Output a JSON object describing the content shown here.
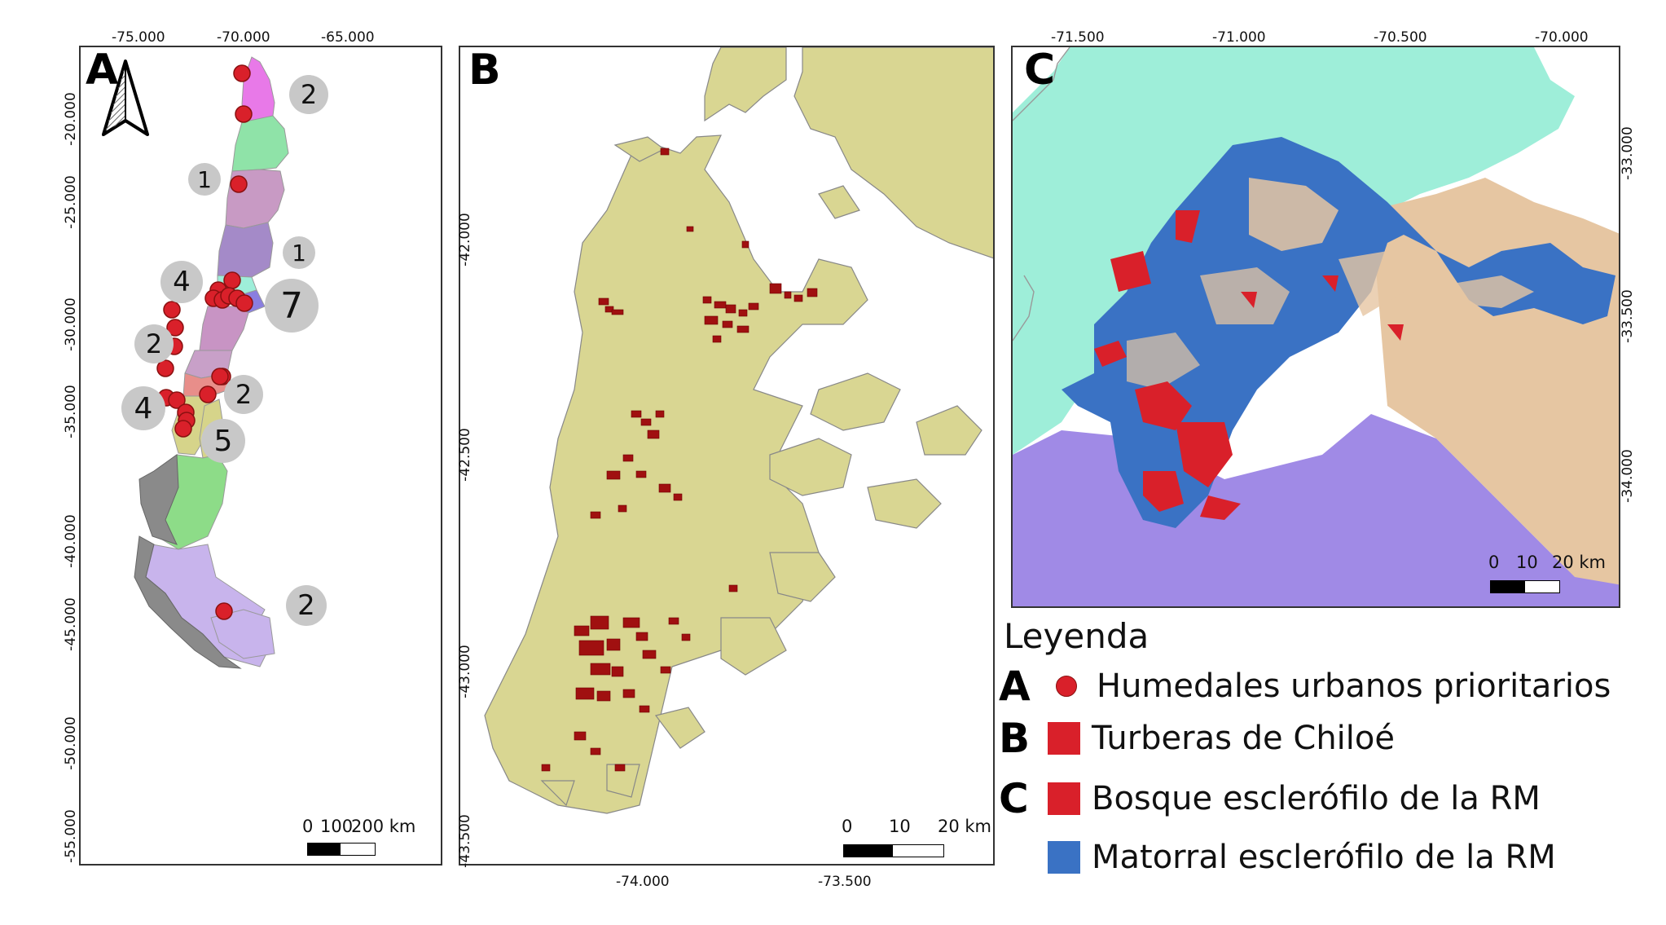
{
  "panel_a": {
    "letter": "A",
    "lon_ticks": [
      "-75.000",
      "-70.000",
      "-65.000"
    ],
    "lat_ticks": [
      "-20.000",
      "-25.000",
      "-30.000",
      "-35.000",
      "-40.000",
      "-45.000",
      "-50.000",
      "-55.000"
    ],
    "counts": [
      "2",
      "1",
      "1",
      "4",
      "7",
      "2",
      "2",
      "4",
      "5",
      "2"
    ],
    "scale": {
      "zero": "0",
      "mid": "100",
      "end": "200 km"
    }
  },
  "panel_b": {
    "letter": "B",
    "lon_ticks": [
      "-74.000",
      "-73.500"
    ],
    "lat_ticks": [
      "-42.000",
      "-42.500",
      "-43.000",
      "-43.500"
    ],
    "scale": {
      "zero": "0",
      "mid": "10",
      "end": "20 km"
    }
  },
  "panel_c": {
    "letter": "C",
    "lon_ticks": [
      "-71.500",
      "-71.000",
      "-70.500",
      "-70.000"
    ],
    "lat_ticks": [
      "-33.000",
      "-33.500",
      "-34.000"
    ],
    "scale": {
      "zero": "0",
      "mid": "10",
      "end": "20 km"
    }
  },
  "legend": {
    "title": "Leyenda",
    "items": [
      {
        "key": "A",
        "label": "Humedales urbanos prioritarios",
        "color": "#d9202a",
        "shape": "circle"
      },
      {
        "key": "B",
        "label": "Turberas de Chiloé",
        "color": "#d9202a",
        "shape": "square"
      },
      {
        "key": "C",
        "label": "Bosque esclerófilo de la RM",
        "color": "#d9202a",
        "shape": "square"
      },
      {
        "key": "",
        "label": "Matorral esclerófilo de la RM",
        "color": "#3a72c4",
        "shape": "square"
      }
    ]
  },
  "colors": {
    "chiloe_land": "#d9d692",
    "peat": "#a01010",
    "wetland_point": "#d9202a",
    "sclerophyll_forest": "#d9202a",
    "sclerophyll_shrub": "#3a72c4",
    "region_valparaiso": "#9eeed9",
    "region_ohiggins": "#a08ae6",
    "region_other": "#e6c6a2",
    "bubble": "#c8c8c8"
  }
}
